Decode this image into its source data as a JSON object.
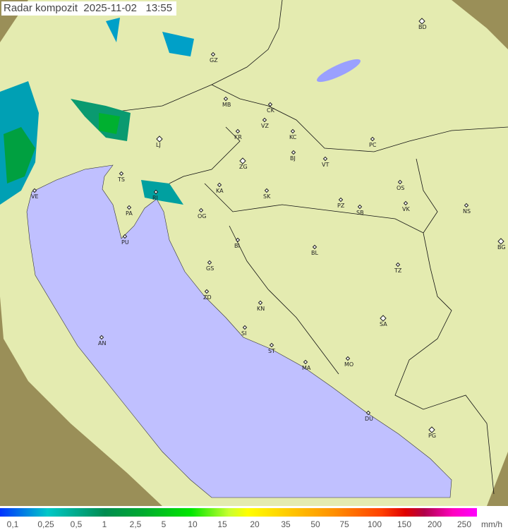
{
  "title": "Radar kompozit  2025-11-02   13:55",
  "legend": {
    "unit": "mm/h",
    "ticks": [
      "0,1",
      "0,25",
      "0,5",
      "1",
      "2,5",
      "5",
      "10",
      "15",
      "20",
      "35",
      "50",
      "75",
      "100",
      "150",
      "200",
      "250"
    ]
  },
  "colors": {
    "sea": "#c0c0ff",
    "coverage": "#e8eeb0",
    "outside": "#8a8150",
    "rain_light": "#00a0c8",
    "rain_mid": "#00b040"
  },
  "cities": [
    "BD",
    "GZ",
    "MB",
    "CK",
    "VZ",
    "KR",
    "KC",
    "LJ",
    "BJ",
    "VT",
    "PC",
    "ZG",
    "TS",
    "VE",
    "KA",
    "SK",
    "OS",
    "RI",
    "PA",
    "PZ",
    "SB",
    "VK",
    "NS",
    "OG",
    "PU",
    "BG",
    "BI",
    "BL",
    "TZ",
    "GS",
    "ZD",
    "KN",
    "SA",
    "AN",
    "SI",
    "ST",
    "MA",
    "MO",
    "DU",
    "PG"
  ]
}
